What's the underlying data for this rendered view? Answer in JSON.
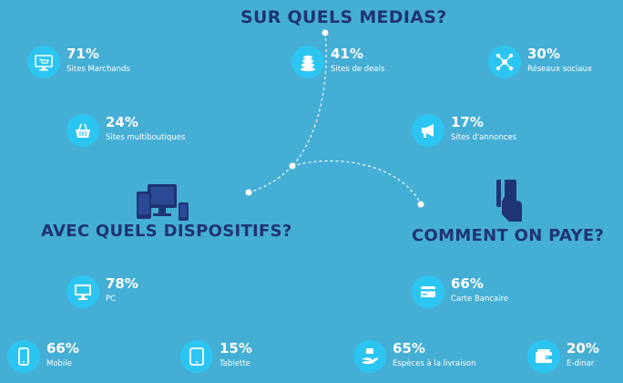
{
  "headings": {
    "medias": "SUR QUELS MEDIAS?",
    "devices": "AVEC QUELS DISPOSITIFS?",
    "payment": "COMMENT ON PAYE?"
  },
  "colors": {
    "background": "#45aed5",
    "heading": "#1f3474",
    "icon_circle": "#2cc5f2",
    "text": "#ffffff"
  },
  "medias": [
    {
      "pct": "71%",
      "label": "Sites Marchands",
      "icon": "shop-screen-icon"
    },
    {
      "pct": "41%",
      "label": "Sites de deals",
      "icon": "coin-stack-icon"
    },
    {
      "pct": "30%",
      "label": "Réseaux sociaux",
      "icon": "network-icon"
    },
    {
      "pct": "24%",
      "label": "Sites multiboutiques",
      "icon": "basket-icon"
    },
    {
      "pct": "17%",
      "label": "Sites d'annonces",
      "icon": "megaphone-icon"
    }
  ],
  "devices": [
    {
      "pct": "78%",
      "label": "PC",
      "icon": "desktop-icon"
    },
    {
      "pct": "66%",
      "label": "Mobile",
      "icon": "smartphone-icon"
    },
    {
      "pct": "15%",
      "label": "Tablette",
      "icon": "tablet-icon"
    }
  ],
  "payments": [
    {
      "pct": "66%",
      "label": "Carte Bancaire",
      "icon": "card-icon"
    },
    {
      "pct": "65%",
      "label": "Espèces à la livraison",
      "icon": "cash-hand-icon"
    },
    {
      "pct": "20%",
      "label": "E-dinar",
      "icon": "wallet-icon"
    }
  ]
}
